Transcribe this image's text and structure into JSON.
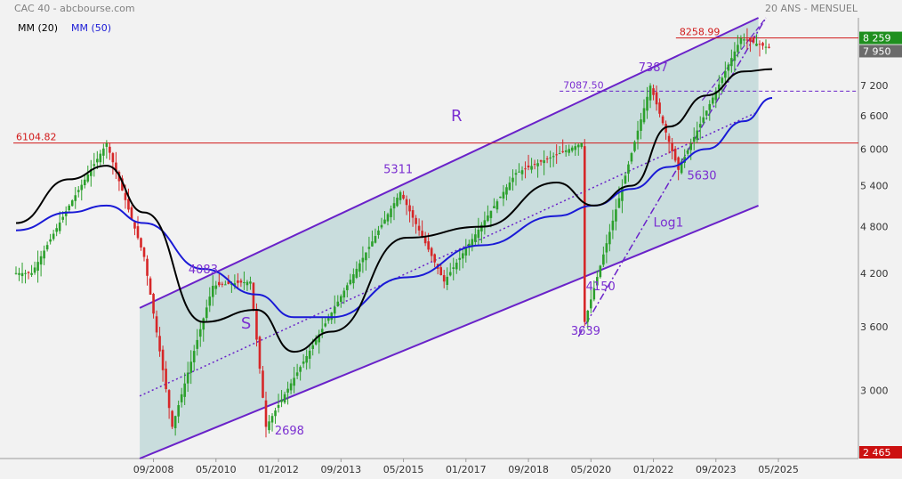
{
  "header": {
    "title": "CAC 40 - abcbourse.com",
    "subtitle": "20 ANS - MENSUEL"
  },
  "legend": {
    "mm20": "MM (20)",
    "mm50": "MM (50)"
  },
  "colors": {
    "background": "#f2f2f2",
    "channel_fill": "#c9dddd",
    "channel_line": "#6a22c9",
    "annotation": "#7b2fd1",
    "resistance": "#d11a1a",
    "mm20": "#000000",
    "mm50": "#1a1ad6",
    "up_candle": "#2ca02c",
    "down_candle": "#d62728",
    "last_price_bg": "#6b6b6b",
    "high_bg": "#1f8f1f",
    "low_bg": "#cc1111"
  },
  "chart_data": {
    "type": "line",
    "title": "CAC 40",
    "scale": "log",
    "ylim": [
      2465,
      8750
    ],
    "y_ticks": [
      "3 000",
      "3 600",
      "4 200",
      "4 800",
      "5 400",
      "6 000",
      "6 600",
      "7 200"
    ],
    "x_ticks": [
      "09/2008",
      "05/2010",
      "01/2012",
      "09/2013",
      "05/2015",
      "01/2017",
      "09/2018",
      "05/2020",
      "01/2022",
      "09/2023",
      "05/2025"
    ],
    "price_labels": {
      "high": "8 259",
      "last": "7 950",
      "low": "2 465"
    },
    "horizontal_levels": [
      {
        "label": "6104.82",
        "value": 6104.82
      },
      {
        "label": "8258.99",
        "value": 8258.99
      },
      {
        "label": "7087.50",
        "value": 7087.5
      }
    ],
    "annotations": [
      "R",
      "S",
      "Log1",
      "5311",
      "4083",
      "2698",
      "7387",
      "5630",
      "4150",
      "3639"
    ],
    "series": [
      {
        "name": "Cours",
        "x": [
          "2005-06",
          "2006-06",
          "2007-06",
          "2008-06",
          "2009-03",
          "2010-04",
          "2011-04",
          "2011-09",
          "2013-06",
          "2015-04",
          "2016-06",
          "2018-05",
          "2020-02",
          "2020-03",
          "2021-12",
          "2022-09",
          "2024-05",
          "2025-03"
        ],
        "values": [
          4200,
          5100,
          6100,
          4400,
          2700,
          4050,
          4100,
          2700,
          3750,
          5300,
          4100,
          5600,
          6100,
          3650,
          7200,
          5650,
          8250,
          8000
        ]
      },
      {
        "name": "MM (20)",
        "x": [
          "2005-01",
          "2006-06",
          "2007-06",
          "2008-06",
          "2010-01",
          "2011-06",
          "2012-06",
          "2013-06",
          "2015-06",
          "2017-06",
          "2019-06",
          "2020-06",
          "2021-06",
          "2022-06",
          "2023-06",
          "2024-06",
          "2025-03"
        ],
        "values": [
          4850,
          5500,
          5720,
          5000,
          3650,
          3780,
          3350,
          3550,
          4650,
          4800,
          5450,
          5100,
          5400,
          6400,
          7000,
          7500,
          7550
        ]
      },
      {
        "name": "MM (50)",
        "x": [
          "2005-01",
          "2006-06",
          "2007-06",
          "2008-06",
          "2010-01",
          "2011-06",
          "2012-06",
          "2013-06",
          "2015-06",
          "2017-06",
          "2019-06",
          "2020-06",
          "2021-06",
          "2022-06",
          "2023-06",
          "2024-06",
          "2025-03"
        ],
        "values": [
          4750,
          5000,
          5100,
          4850,
          4250,
          3950,
          3700,
          3700,
          4150,
          4550,
          4950,
          5100,
          5350,
          5700,
          6000,
          6500,
          6950
        ]
      }
    ]
  }
}
